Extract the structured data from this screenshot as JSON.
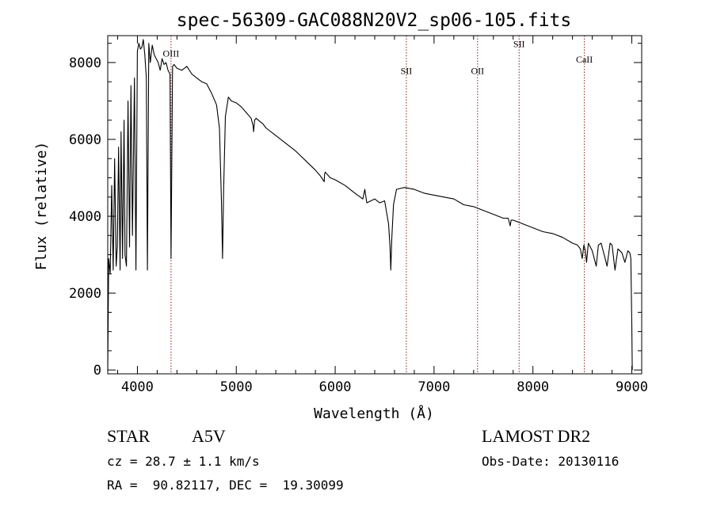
{
  "chart_data": {
    "type": "line",
    "title": "spec-56309-GAC088N20V2_sp06-105.fits",
    "xlabel": "Wavelength (Å)",
    "ylabel": "Flux (relative)",
    "xlim": [
      3700,
      9100
    ],
    "ylim": [
      -100,
      8700
    ],
    "xticks": [
      4000,
      5000,
      6000,
      7000,
      8000,
      9000
    ],
    "yticks": [
      0,
      2000,
      4000,
      6000,
      8000
    ],
    "grid": false,
    "line_color": "#000000",
    "marker_color": "#8b1a1a",
    "series": [
      {
        "x": [
          3700,
          3710,
          3725,
          3740,
          3755,
          3770,
          3785,
          3797,
          3810,
          3825,
          3835,
          3850,
          3865,
          3875,
          3889,
          3905,
          3920,
          3935,
          3950,
          3970,
          3985,
          4000,
          4015,
          4030,
          4045,
          4060,
          4075,
          4090,
          4101,
          4115,
          4130,
          4150,
          4170,
          4190,
          4210,
          4230,
          4250,
          4270,
          4290,
          4310,
          4330,
          4340,
          4355,
          4370,
          4400,
          4450,
          4500,
          4550,
          4600,
          4650,
          4700,
          4750,
          4800,
          4830,
          4850,
          4861,
          4872,
          4890,
          4920,
          4950,
          5000,
          5050,
          5100,
          5150,
          5170,
          5175,
          5185,
          5200,
          5270,
          5300,
          5400,
          5500,
          5600,
          5700,
          5800,
          5850,
          5889,
          5893,
          5900,
          5950,
          6000,
          6100,
          6200,
          6280,
          6300,
          6320,
          6400,
          6450,
          6500,
          6540,
          6555,
          6563,
          6572,
          6590,
          6620,
          6700,
          6800,
          6900,
          7000,
          7100,
          7200,
          7300,
          7400,
          7500,
          7600,
          7700,
          7750,
          7770,
          7780,
          7800,
          7900,
          8000,
          8100,
          8200,
          8300,
          8400,
          8450,
          8480,
          8498,
          8515,
          8530,
          8542,
          8560,
          8580,
          8600,
          8640,
          8662,
          8690,
          8720,
          8750,
          8780,
          8800,
          8830,
          8860,
          8880,
          8900,
          8930,
          8960,
          8980,
          8990,
          9000,
          9005
        ],
        "y": [
          0,
          2900,
          2500,
          4800,
          2600,
          5500,
          2700,
          3200,
          5800,
          2600,
          6200,
          2900,
          6500,
          3000,
          2700,
          7000,
          3200,
          7400,
          3500,
          7600,
          2600,
          8300,
          8500,
          8350,
          8400,
          8600,
          8200,
          7600,
          2600,
          8500,
          8000,
          8450,
          8200,
          8100,
          8000,
          7800,
          8100,
          7950,
          8000,
          7800,
          7700,
          2900,
          7900,
          7950,
          7850,
          7800,
          7900,
          7700,
          7600,
          7500,
          7450,
          7200,
          6900,
          6300,
          4400,
          2900,
          4700,
          6600,
          7100,
          7000,
          6950,
          6850,
          6700,
          6550,
          6350,
          6200,
          6500,
          6550,
          6400,
          6300,
          6100,
          5900,
          5700,
          5450,
          5200,
          5050,
          4900,
          5100,
          5150,
          5000,
          4950,
          4800,
          4600,
          4450,
          4700,
          4350,
          4450,
          4350,
          4400,
          3800,
          3200,
          2600,
          3400,
          4300,
          4700,
          4750,
          4700,
          4600,
          4550,
          4500,
          4450,
          4300,
          4250,
          4150,
          4050,
          3950,
          3950,
          3750,
          3900,
          3900,
          3800,
          3700,
          3600,
          3550,
          3450,
          3300,
          3250,
          3150,
          2900,
          3250,
          3100,
          2800,
          3300,
          3200,
          3100,
          2700,
          3250,
          3300,
          3000,
          2700,
          3300,
          3250,
          2600,
          3150,
          3100,
          3050,
          2800,
          3100,
          3050,
          2900,
          1200,
          0
        ]
      }
    ],
    "lines": [
      {
        "x": 4340,
        "label": "OIII",
        "label_y": 8150
      },
      {
        "x": 6720,
        "label": "SII",
        "label_y": 7700
      },
      {
        "x": 7440,
        "label": "OII",
        "label_y": 7700
      },
      {
        "x": 7860,
        "label": "SII",
        "label_y": 8400
      },
      {
        "x": 8520,
        "label": "CaII",
        "label_y": 8000
      }
    ]
  },
  "info": {
    "object_type": "STAR",
    "subclass": "A5V",
    "survey": "LAMOST DR2",
    "cz": "cz = 28.7 ± 1.1 km/s",
    "obs_date": "Obs-Date: 20130116",
    "coords": "RA =  90.82117, DEC =  19.30099"
  }
}
